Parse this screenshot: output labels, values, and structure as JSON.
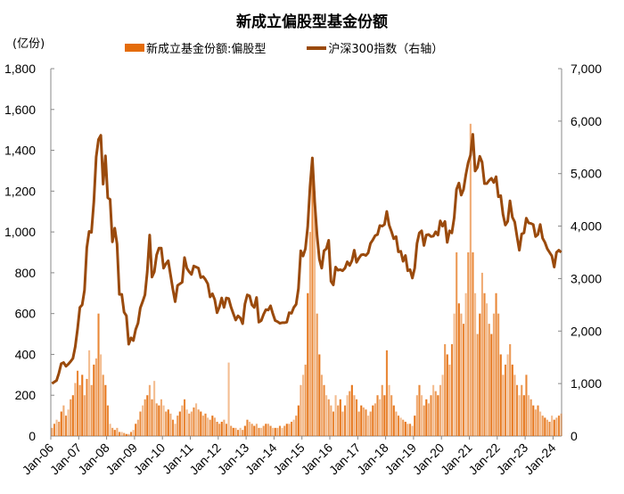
{
  "chart_data": {
    "type": "bar+line",
    "title": "新成立偏股型基金份额",
    "left_axis_unit": "(亿份)",
    "legend_position": "top",
    "grid": false,
    "x_tick_labels": [
      "Jan-06",
      "Jan-07",
      "Jan-08",
      "Jan-09",
      "Jan-10",
      "Jan-11",
      "Jan-12",
      "Jan-13",
      "Jan-14",
      "Jan-15",
      "Jan-16",
      "Jan-17",
      "Jan-18",
      "Jan-19",
      "Jan-20",
      "Jan-21",
      "Jan-22",
      "Jan-23",
      "Jan-24"
    ],
    "x_range": [
      "2006-01",
      "2024-04"
    ],
    "y_left": {
      "range": [
        0,
        1800
      ],
      "ticks": [
        "0",
        "200",
        "400",
        "600",
        "800",
        "1,000",
        "1,200",
        "1,400",
        "1,600",
        "1,800"
      ],
      "tick_values": [
        0,
        200,
        400,
        600,
        800,
        1000,
        1200,
        1400,
        1600,
        1800
      ]
    },
    "y_right": {
      "range": [
        0,
        7000
      ],
      "ticks": [
        "0",
        "1,000",
        "2,000",
        "3,000",
        "4,000",
        "5,000",
        "6,000",
        "7,000"
      ],
      "tick_values": [
        0,
        1000,
        2000,
        3000,
        4000,
        5000,
        6000,
        7000
      ]
    },
    "series": [
      {
        "name": "新成立基金份额:偏股型",
        "type": "bar",
        "axis": "left",
        "color": "#e46c0a",
        "monthly_by_year": {
          "2006": [
            40,
            60,
            80,
            70,
            120,
            150,
            100,
            130,
            180,
            200,
            260,
            320
          ],
          "2007": [
            250,
            300,
            200,
            280,
            420,
            250,
            350,
            380,
            600,
            400,
            300,
            250
          ],
          "2008": [
            150,
            60,
            40,
            30,
            40,
            20,
            20,
            15,
            10,
            10,
            20,
            30
          ],
          "2009": [
            60,
            80,
            120,
            150,
            180,
            200,
            250,
            180,
            270,
            160,
            150,
            180
          ],
          "2010": [
            150,
            120,
            130,
            110,
            80,
            60,
            100,
            120,
            150,
            180,
            130,
            110
          ],
          "2011": [
            120,
            140,
            160,
            130,
            120,
            100,
            110,
            90,
            80,
            100,
            90,
            70
          ],
          "2012": [
            60,
            70,
            80,
            60,
            360,
            50,
            40,
            40,
            30,
            40,
            30,
            50
          ],
          "2013": [
            80,
            70,
            60,
            50,
            60,
            40,
            40,
            50,
            60,
            60,
            50,
            40
          ],
          "2014": [
            40,
            40,
            50,
            40,
            50,
            60,
            60,
            70,
            80,
            100,
            150,
            250
          ],
          "2015": [
            300,
            350,
            700,
            1000,
            1330,
            1200,
            600,
            400,
            300,
            250,
            200,
            180
          ],
          "2016": [
            150,
            120,
            200,
            150,
            180,
            120,
            150,
            200,
            220,
            250,
            200,
            180
          ],
          "2017": [
            120,
            150,
            140,
            130,
            100,
            120,
            150,
            160,
            200,
            180,
            250,
            200
          ],
          "2018": [
            420,
            250,
            200,
            150,
            120,
            100,
            90,
            80,
            70,
            60,
            60,
            50
          ],
          "2019": [
            100,
            200,
            250,
            200,
            150,
            180,
            160,
            200,
            250,
            220,
            200,
            250
          ],
          "2020": [
            300,
            450,
            400,
            350,
            450,
            600,
            900,
            650,
            600,
            550,
            700,
            900
          ],
          "2021": [
            1530,
            900,
            700,
            500,
            600,
            800,
            700,
            650,
            550,
            500,
            600,
            700
          ],
          "2022": [
            600,
            400,
            300,
            350,
            400,
            450,
            350,
            300,
            250,
            200,
            250,
            200
          ],
          "2023": [
            300,
            200,
            180,
            150,
            130,
            150,
            120,
            100,
            90,
            80,
            70,
            100
          ],
          "2024": [
            80,
            90,
            100,
            110
          ]
        }
      },
      {
        "name": "沪深300指数（右轴）",
        "type": "line",
        "axis": "right",
        "color": "#9a4a0c",
        "monthly_by_year": {
          "2006": [
            1000,
            1030,
            1060,
            1200,
            1380,
            1400,
            1330,
            1370,
            1420,
            1480,
            1700,
            2040
          ],
          "2007": [
            2450,
            2500,
            2780,
            3590,
            3900,
            3880,
            4470,
            5320,
            5650,
            5730,
            4800,
            5340
          ],
          "2008": [
            4540,
            4510,
            3700,
            3960,
            3660,
            2700,
            2700,
            2360,
            2290,
            1750,
            1870,
            1820
          ],
          "2009": [
            2030,
            2150,
            2440,
            2560,
            2690,
            3130,
            3830,
            3030,
            3130,
            3450,
            3580,
            3580
          ],
          "2010": [
            3200,
            3280,
            3340,
            3070,
            2800,
            2560,
            2870,
            2900,
            2930,
            3400,
            3200,
            3130
          ],
          "2011": [
            3080,
            3240,
            3220,
            3200,
            3020,
            3040,
            2980,
            2900,
            2650,
            2710,
            2600,
            2350
          ],
          "2012": [
            2460,
            2630,
            2450,
            2630,
            2620,
            2460,
            2330,
            2210,
            2290,
            2250,
            2140,
            2520
          ],
          "2013": [
            2690,
            2670,
            2500,
            2450,
            2640,
            2170,
            2200,
            2320,
            2410,
            2400,
            2480,
            2330
          ],
          "2014": [
            2200,
            2180,
            2150,
            2160,
            2160,
            2170,
            2350,
            2340,
            2450,
            2510,
            2810,
            3530
          ],
          "2015": [
            3430,
            3570,
            3990,
            4750,
            5300,
            4470,
            3820,
            3370,
            3200,
            3530,
            3570,
            3730
          ],
          "2016": [
            2950,
            2880,
            3220,
            3160,
            3170,
            3150,
            3200,
            3320,
            3250,
            3340,
            3540,
            3310
          ],
          "2017": [
            3390,
            3450,
            3460,
            3440,
            3490,
            3670,
            3740,
            3820,
            3840,
            4010,
            4000,
            4030
          ],
          "2018": [
            4280,
            4020,
            3900,
            3760,
            3800,
            3510,
            3520,
            3330,
            3440,
            3150,
            3170,
            3010
          ],
          "2019": [
            3200,
            3670,
            3870,
            3910,
            3630,
            3830,
            3840,
            3800,
            3810,
            3890,
            3830,
            4100
          ],
          "2020": [
            4000,
            4090,
            3690,
            3910,
            3870,
            4160,
            4700,
            4820,
            4590,
            4700,
            4980,
            5210
          ],
          "2021": [
            5350,
            5750,
            5050,
            5120,
            5330,
            5220,
            4810,
            4810,
            4870,
            4910,
            4830,
            4940
          ],
          "2022": [
            4560,
            4580,
            4220,
            4020,
            4090,
            4480,
            4170,
            4080,
            3800,
            3540,
            3850,
            3870
          ],
          "2023": [
            4150,
            4060,
            4050,
            4030,
            3800,
            3840,
            4030,
            3770,
            3690,
            3570,
            3500,
            3430
          ],
          "2024": [
            3220,
            3500,
            3540,
            3500
          ]
        }
      }
    ]
  }
}
